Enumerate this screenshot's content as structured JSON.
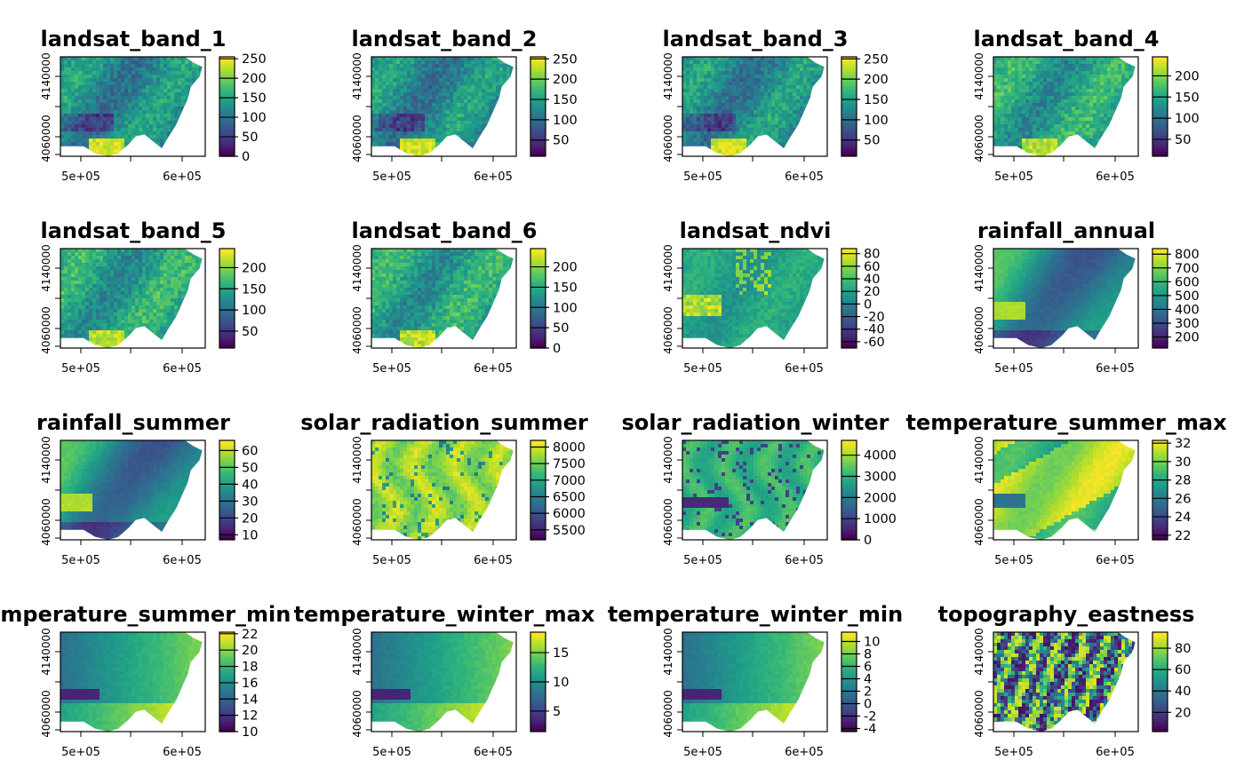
{
  "figure": {
    "panels": [
      {
        "title": "landsat_band_1",
        "legend": {
          "labels": [
            "250",
            "200",
            "150",
            "100",
            "50",
            "0"
          ],
          "min": 0,
          "max": 255
        },
        "palette": "viridis",
        "pattern": "band"
      },
      {
        "title": "landsat_band_2",
        "legend": {
          "labels": [
            "250",
            "200",
            "150",
            "100",
            "50"
          ],
          "min": 10,
          "max": 255
        },
        "palette": "viridis",
        "pattern": "band"
      },
      {
        "title": "landsat_band_3",
        "legend": {
          "labels": [
            "250",
            "200",
            "150",
            "100",
            "50"
          ],
          "min": 10,
          "max": 255
        },
        "palette": "viridis",
        "pattern": "band"
      },
      {
        "title": "landsat_band_4",
        "legend": {
          "labels": [
            "200",
            "150",
            "100",
            "50"
          ],
          "min": 10,
          "max": 245
        },
        "palette": "viridis",
        "pattern": "band_mid"
      },
      {
        "title": "landsat_band_5",
        "legend": {
          "labels": [
            "200",
            "150",
            "100",
            "50"
          ],
          "min": 10,
          "max": 245
        },
        "palette": "viridis",
        "pattern": "band_mid"
      },
      {
        "title": "landsat_band_6",
        "legend": {
          "labels": [
            "200",
            "150",
            "100",
            "50",
            "0"
          ],
          "min": 0,
          "max": 245
        },
        "palette": "viridis",
        "pattern": "band_mid"
      },
      {
        "title": "landsat_ndvi",
        "legend": {
          "labels": [
            "80",
            "60",
            "40",
            "20",
            "0",
            "-20",
            "-40",
            "-60"
          ],
          "min": -70,
          "max": 88
        },
        "palette": "viridis",
        "pattern": "ndvi"
      },
      {
        "title": "rainfall_annual",
        "legend": {
          "labels": [
            "800",
            "700",
            "600",
            "500",
            "400",
            "300",
            "200"
          ],
          "min": 120,
          "max": 840
        },
        "palette": "viridis",
        "pattern": "rain"
      },
      {
        "title": "rainfall_summer",
        "legend": {
          "labels": [
            "60",
            "50",
            "40",
            "30",
            "20",
            "10"
          ],
          "min": 7,
          "max": 66
        },
        "palette": "viridis",
        "pattern": "rain"
      },
      {
        "title": "solar_radiation_summer",
        "legend": {
          "labels": [
            "8000",
            "7500",
            "7000",
            "6500",
            "6000",
            "5500"
          ],
          "min": 5200,
          "max": 8200
        },
        "palette": "viridis",
        "pattern": "solar_s"
      },
      {
        "title": "solar_radiation_winter",
        "legend": {
          "labels": [
            "4000",
            "3000",
            "2000",
            "1000",
            "0"
          ],
          "min": 0,
          "max": 4700
        },
        "palette": "viridis",
        "pattern": "solar_w"
      },
      {
        "title": "temperature_summer_max",
        "legend": {
          "labels": [
            "32",
            "30",
            "28",
            "26",
            "24",
            "22"
          ],
          "min": 21.5,
          "max": 32.3
        },
        "palette": "viridis",
        "pattern": "tmax"
      },
      {
        "title": "temperature_summer_min",
        "legend": {
          "labels": [
            "22",
            "20",
            "18",
            "16",
            "14",
            "12",
            "10"
          ],
          "min": 10,
          "max": 22.2
        },
        "palette": "viridis",
        "pattern": "temp"
      },
      {
        "title": "temperature_winter_max",
        "legend": {
          "labels": [
            "15",
            "10",
            "5"
          ],
          "min": 1.5,
          "max": 18.5
        },
        "palette": "viridis",
        "pattern": "temp"
      },
      {
        "title": "temperature_winter_min",
        "legend": {
          "labels": [
            "10",
            "8",
            "6",
            "4",
            "2",
            "0",
            "-2",
            "-4"
          ],
          "min": -4.5,
          "max": 11.5
        },
        "palette": "viridis",
        "pattern": "temp"
      },
      {
        "title": "topography_eastness",
        "legend": {
          "labels": [
            "80",
            "60",
            "40",
            "20"
          ],
          "min": 2,
          "max": 95
        },
        "palette": "viridis",
        "pattern": "east"
      }
    ],
    "x_ticks": [
      "5e+05",
      "6e+05"
    ],
    "y_ticks": [
      "4060000",
      "4140000"
    ]
  }
}
